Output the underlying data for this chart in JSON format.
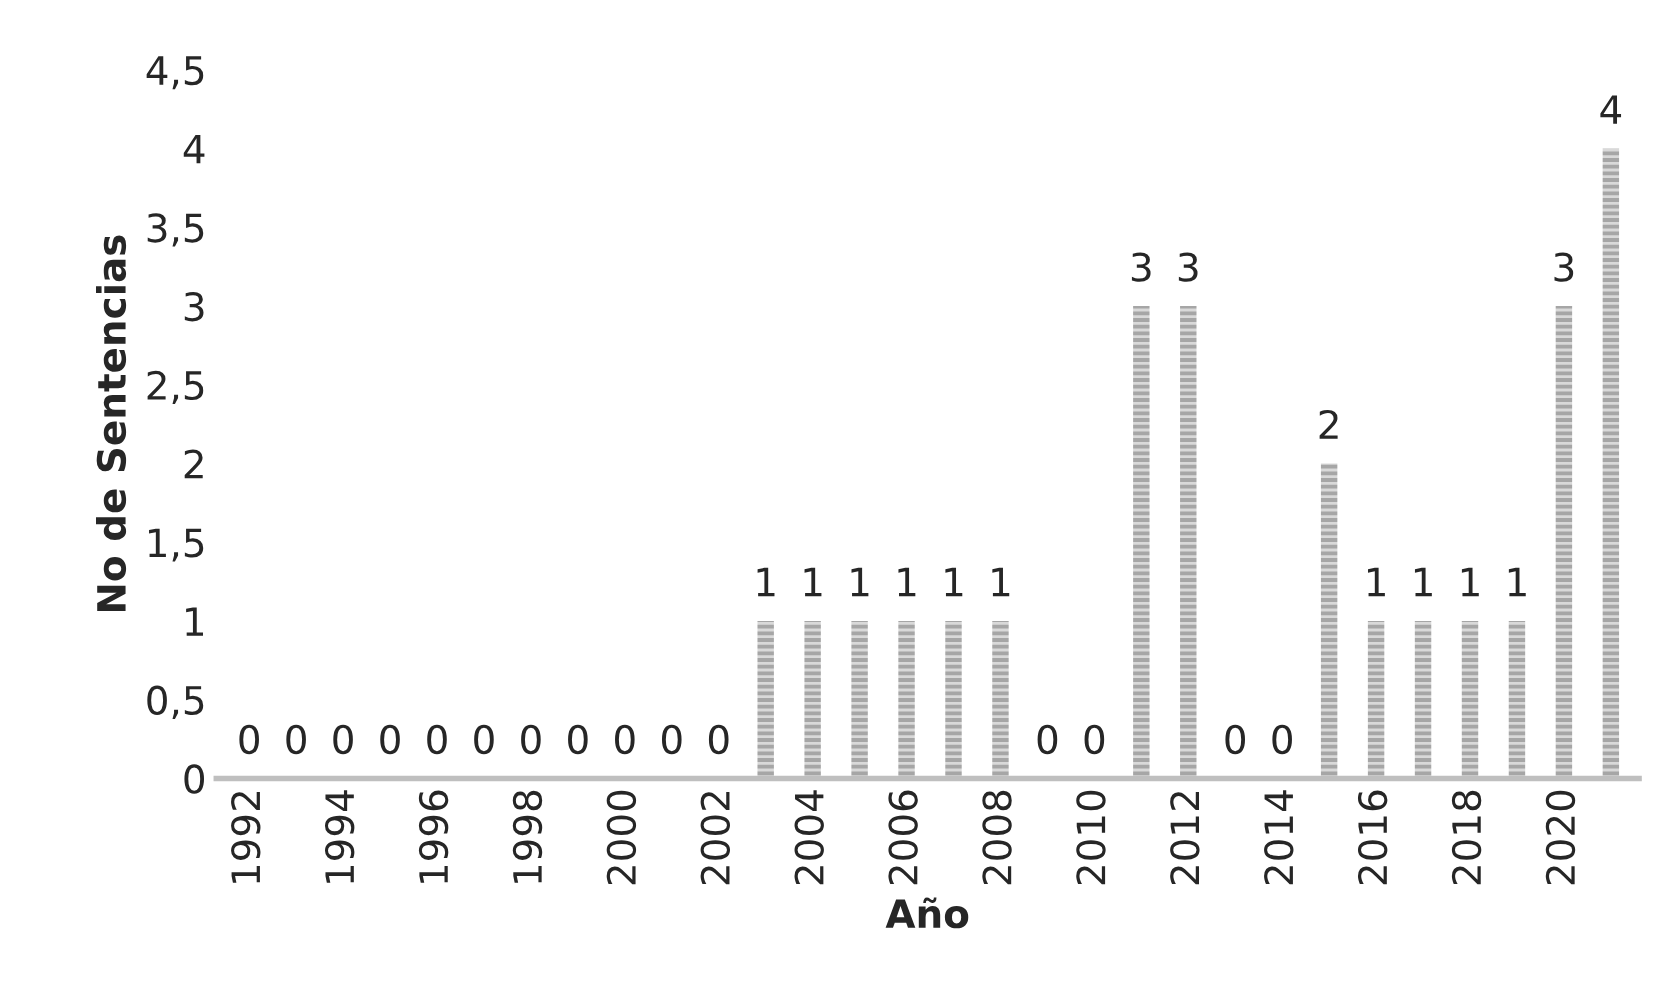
{
  "chart_data": {
    "type": "bar",
    "xlabel": "Año",
    "ylabel": "No de Sentencias",
    "categories": [
      "1992",
      null,
      "1994",
      null,
      "1996",
      null,
      "1998",
      null,
      "2000",
      null,
      "2002",
      null,
      "2004",
      null,
      "2006",
      null,
      "2008",
      null,
      "2010",
      null,
      "2012",
      null,
      "2014",
      null,
      "2016",
      null,
      "2018",
      null,
      "2020",
      null
    ],
    "values": [
      0,
      0,
      0,
      0,
      0,
      0,
      0,
      0,
      0,
      0,
      0,
      1,
      1,
      1,
      1,
      1,
      1,
      0,
      0,
      3,
      3,
      0,
      0,
      2,
      1,
      1,
      1,
      1,
      3,
      4
    ],
    "color": "#a6a6a6",
    "ylim": [
      0,
      4.5
    ],
    "yticks": [
      0,
      {
        "value": 0.5,
        "label": "0,5"
      },
      1,
      {
        "value": 1.5,
        "label": "1,5"
      },
      2,
      {
        "value": 2.5,
        "label": "2,5"
      },
      3,
      {
        "value": 3.5,
        "label": "3,5"
      },
      4,
      {
        "value": 4.5,
        "label": "4,5"
      }
    ],
    "data_labels": true,
    "grid": false,
    "legend": false
  }
}
